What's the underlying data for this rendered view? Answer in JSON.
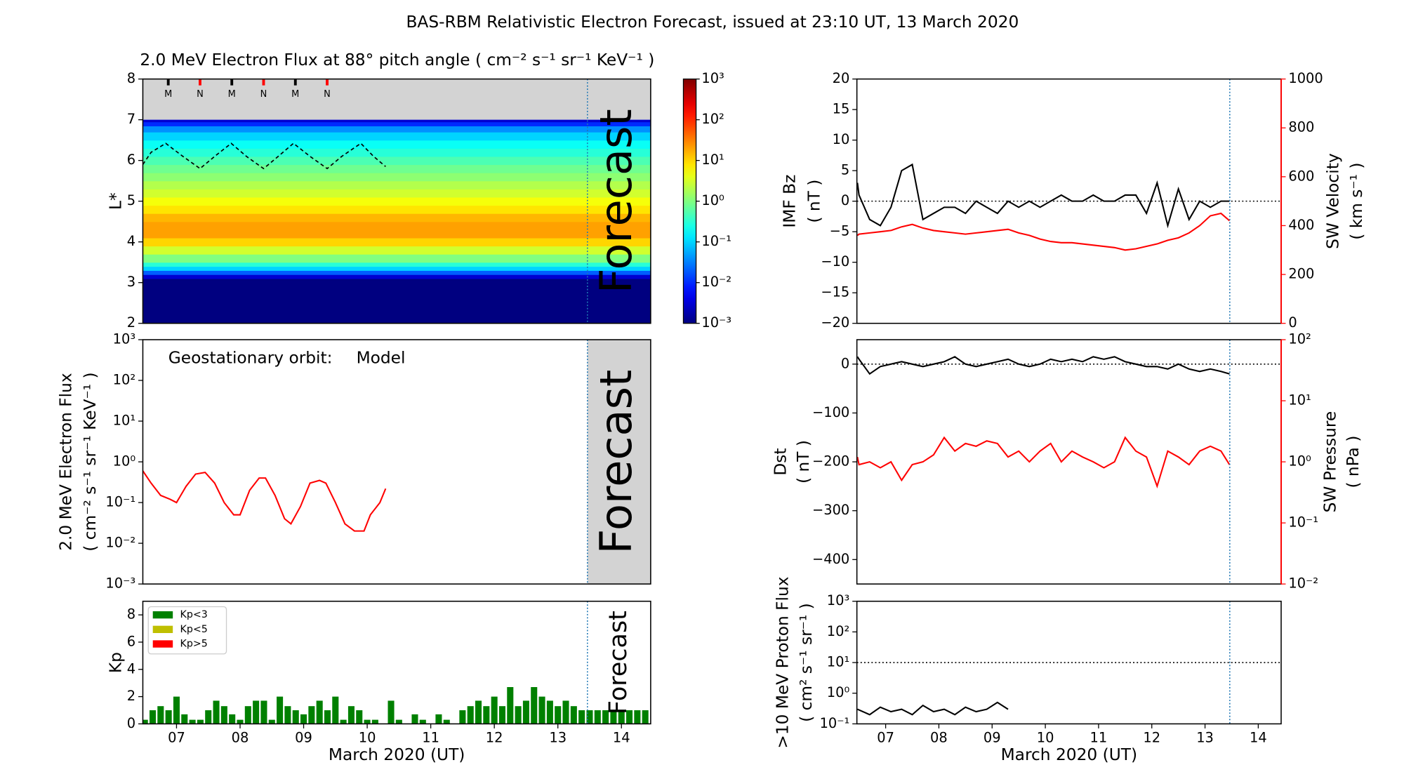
{
  "title": "BAS-RBM Relativistic Electron Forecast, issued at 23:10 UT, 13 March 2020",
  "chart_data": [
    {
      "type": "heatmap",
      "title": "2.0 MeV Electron Flux at 88° pitch angle ( cm⁻² s⁻¹ sr⁻¹ KeV⁻¹ )",
      "ylabel": "L*",
      "xlim": [
        6.97,
        14.96
      ],
      "ylim": [
        2,
        8
      ],
      "yticks": [
        2,
        3,
        4,
        5,
        6,
        7,
        8
      ],
      "L_edges": [
        2.0,
        3.1,
        3.2,
        3.3,
        3.4,
        3.5,
        3.7,
        3.9,
        4.1,
        4.3,
        4.5,
        4.7,
        4.9,
        5.1,
        5.3,
        5.5,
        5.7,
        5.9,
        6.1,
        6.3,
        6.5,
        6.7,
        6.85,
        6.95,
        7.0
      ],
      "values": [
        0.001,
        0.003,
        0.02,
        0.1,
        0.3,
        1,
        3,
        10,
        20,
        20,
        15,
        8,
        5,
        3,
        2,
        1.2,
        0.8,
        0.5,
        0.3,
        0.2,
        0.1,
        0.04,
        0.01,
        0.003
      ],
      "no_data_color": "#d3d3d3",
      "colorbar": {
        "lim": [
          0.001,
          1000
        ],
        "log": true,
        "ticks": [
          {
            "value": 0.001,
            "label": "10⁻³"
          },
          {
            "value": 0.01,
            "label": "10⁻²"
          },
          {
            "value": 0.1,
            "label": "10⁻¹"
          },
          {
            "value": 1,
            "label": "10⁰"
          },
          {
            "value": 10,
            "label": "10¹"
          },
          {
            "value": 100,
            "label": "10²"
          },
          {
            "value": 1000,
            "label": "10³"
          }
        ]
      },
      "line": {
        "color": "#000",
        "x": [
          6.97,
          7.1,
          7.33,
          7.6,
          7.87,
          8.1,
          8.36,
          8.6,
          8.87,
          9.1,
          9.34,
          9.6,
          9.87,
          10.1,
          10.4,
          10.6,
          10.79
        ],
        "values": [
          5.9,
          6.2,
          6.42,
          6.1,
          5.8,
          6.1,
          6.42,
          6.1,
          5.8,
          6.1,
          6.42,
          6.1,
          5.8,
          6.1,
          6.42,
          6.1,
          5.85
        ]
      },
      "markers": [
        {
          "x": 7.37,
          "label": "M",
          "color": "#000"
        },
        {
          "x": 7.87,
          "label": "N",
          "color": "#ff0000"
        },
        {
          "x": 8.37,
          "label": "M",
          "color": "#000"
        },
        {
          "x": 8.87,
          "label": "N",
          "color": "#ff0000"
        },
        {
          "x": 9.37,
          "label": "M",
          "color": "#000"
        },
        {
          "x": 9.87,
          "label": "N",
          "color": "#ff0000"
        }
      ],
      "forecast_x": 13.965,
      "forecast_label": "Forecast",
      "forecast_color": "rgba(255,255,255,0.35)"
    },
    {
      "type": "line",
      "ylabel": [
        "2.0 MeV Electron Flux",
        "( cm⁻² s⁻¹ sr⁻¹ KeV⁻¹ )"
      ],
      "ylog": true,
      "xlim": [
        6.97,
        14.96
      ],
      "ylim": [
        0.001,
        1000
      ],
      "yticks": [
        {
          "value": 0.001,
          "label": "10⁻³"
        },
        {
          "value": 0.01,
          "label": "10⁻²"
        },
        {
          "value": 0.1,
          "label": "10⁻¹"
        },
        {
          "value": 1,
          "label": "10⁰"
        },
        {
          "value": 10,
          "label": "10¹"
        },
        {
          "value": 100,
          "label": "10²"
        },
        {
          "value": 1000,
          "label": "10³"
        }
      ],
      "annotation": "Geostationary orbit:",
      "x": [
        6.97,
        7.1,
        7.25,
        7.4,
        7.5,
        7.65,
        7.8,
        7.95,
        8.1,
        8.25,
        8.4,
        8.5,
        8.65,
        8.8,
        8.9,
        9.05,
        9.2,
        9.3,
        9.45,
        9.6,
        9.75,
        9.85,
        10.0,
        10.15,
        10.3,
        10.45,
        10.55,
        10.7,
        10.79
      ],
      "series": [
        {
          "name": "Model",
          "color": "#ff0000",
          "values": [
            0.6,
            0.3,
            0.15,
            0.12,
            0.1,
            0.25,
            0.5,
            0.55,
            0.3,
            0.1,
            0.05,
            0.05,
            0.2,
            0.4,
            0.4,
            0.15,
            0.04,
            0.03,
            0.08,
            0.3,
            0.35,
            0.3,
            0.1,
            0.03,
            0.02,
            0.02,
            0.05,
            0.1,
            0.22
          ]
        }
      ],
      "forecast_x": 13.965,
      "forecast_label": "Forecast",
      "forecast_shade": "#d3d3d3",
      "forecast_color": "#bdbdbd"
    },
    {
      "type": "bar",
      "ylabel": "Kp",
      "xlabel": "March 2020 (UT)",
      "xlim": [
        6.97,
        14.96
      ],
      "ylim": [
        0,
        9
      ],
      "yticks": [
        0,
        2,
        4,
        6,
        8
      ],
      "xticks": [
        {
          "value": 7.5,
          "label": "07"
        },
        {
          "value": 8.5,
          "label": "08"
        },
        {
          "value": 9.5,
          "label": "09"
        },
        {
          "value": 10.5,
          "label": "10"
        },
        {
          "value": 11.5,
          "label": "11"
        },
        {
          "value": 12.5,
          "label": "12"
        },
        {
          "value": 13.5,
          "label": "13"
        },
        {
          "value": 14.5,
          "label": "14"
        }
      ],
      "x": [
        7,
        7.125,
        7.25,
        7.375,
        7.5,
        7.625,
        7.75,
        7.875,
        8,
        8.125,
        8.25,
        8.375,
        8.5,
        8.625,
        8.75,
        8.875,
        9,
        9.125,
        9.25,
        9.375,
        9.5,
        9.625,
        9.75,
        9.875,
        10,
        10.125,
        10.25,
        10.375,
        10.5,
        10.625,
        10.75,
        10.875,
        11,
        11.125,
        11.25,
        11.375,
        11.5,
        11.625,
        11.75,
        11.875,
        12,
        12.125,
        12.25,
        12.375,
        12.5,
        12.625,
        12.75,
        12.875,
        13,
        13.125,
        13.25,
        13.375,
        13.5,
        13.625,
        13.75,
        13.875,
        14,
        14.125,
        14.25,
        14.375,
        14.5,
        14.625,
        14.75,
        14.875
      ],
      "values": [
        0.3,
        1,
        1.3,
        1,
        2,
        0.7,
        0.3,
        0.3,
        1,
        1.7,
        1.3,
        0.7,
        0.3,
        1.3,
        1.7,
        1.7,
        0.3,
        2,
        1.3,
        1,
        0.7,
        1.3,
        1.7,
        1,
        2,
        0.3,
        1.3,
        1,
        0.3,
        0.3,
        0,
        1.7,
        0.3,
        0,
        0.7,
        0.3,
        0,
        0.7,
        0.3,
        0,
        1,
        1.3,
        1.7,
        1.3,
        2,
        1.3,
        2.7,
        1.3,
        1.7,
        2.7,
        2,
        1.7,
        1.3,
        1.7,
        1.3,
        1,
        1,
        1,
        1,
        1,
        1,
        1,
        1,
        1
      ],
      "color": "#008000",
      "legend": [
        {
          "name": "Kp<3",
          "color": "#008000"
        },
        {
          "name": "Kp<5",
          "color": "#bfbf00"
        },
        {
          "name": "Kp>5",
          "color": "#ff0000"
        }
      ],
      "forecast_x": 13.965,
      "forecast_label": "Forecast",
      "forecast_color": "#e6e6e6"
    },
    {
      "type": "line",
      "ylabel": [
        "IMF Bz",
        "( nT )"
      ],
      "y2label": [
        "SW Velocity",
        "( km s⁻¹ )"
      ],
      "y2color": "#ff0000",
      "xlim": [
        6.96,
        14.93
      ],
      "ylim": [
        -20,
        20
      ],
      "yticks": [
        {
          "value": -20,
          "label": "−20"
        },
        {
          "value": -15,
          "label": "−15"
        },
        {
          "value": -10,
          "label": "−10"
        },
        {
          "value": -5,
          "label": "−5"
        },
        0,
        5,
        10,
        15,
        20
      ],
      "y2lim": [
        0,
        1000
      ],
      "y2ticks": [
        0,
        200,
        400,
        600,
        800,
        1000
      ],
      "reference_line": 0,
      "x": [
        6.97,
        7.0,
        7.2,
        7.4,
        7.6,
        7.8,
        8.0,
        8.2,
        8.4,
        8.6,
        8.8,
        9.0,
        9.2,
        9.4,
        9.6,
        9.8,
        10.0,
        10.2,
        10.4,
        10.6,
        10.8,
        11.0,
        11.2,
        11.4,
        11.6,
        11.8,
        12.0,
        12.2,
        12.4,
        12.6,
        12.8,
        13.0,
        13.2,
        13.4,
        13.6,
        13.8,
        13.96
      ],
      "series": [
        {
          "color": "#000",
          "values": [
            3,
            1,
            -3,
            -4,
            -1,
            5,
            6,
            -3,
            -2,
            -1,
            -1,
            -2,
            0,
            -1,
            -2,
            0,
            -1,
            0,
            -1,
            0,
            1,
            0,
            0,
            1,
            0,
            0,
            1,
            1,
            -2,
            3,
            -4,
            2,
            -3,
            0,
            -1,
            0,
            0
          ]
        },
        {
          "color": "#ff0000",
          "axis": "y2",
          "values": [
            360,
            365,
            370,
            375,
            380,
            395,
            405,
            390,
            380,
            375,
            370,
            365,
            370,
            375,
            380,
            385,
            370,
            360,
            345,
            335,
            330,
            330,
            325,
            320,
            315,
            310,
            300,
            305,
            315,
            325,
            340,
            350,
            370,
            400,
            440,
            450,
            420
          ]
        }
      ],
      "forecast_x": 13.965
    },
    {
      "type": "line",
      "ylabel": [
        "Dst",
        "( nT )"
      ],
      "y2label": [
        "SW Pressure",
        "( nPa )"
      ],
      "y2color": "#ff0000",
      "y2log": true,
      "xlim": [
        6.96,
        14.93
      ],
      "ylim": [
        -450,
        50
      ],
      "yticks": [
        {
          "value": -400,
          "label": "−400"
        },
        {
          "value": -300,
          "label": "−300"
        },
        {
          "value": -200,
          "label": "−200"
        },
        {
          "value": -100,
          "label": "−100"
        },
        0
      ],
      "y2lim": [
        0.01,
        100
      ],
      "y2ticks": [
        {
          "value": 0.01,
          "label": "10⁻²"
        },
        {
          "value": 0.1,
          "label": "10⁻¹"
        },
        {
          "value": 1,
          "label": "10⁰"
        },
        {
          "value": 10,
          "label": "10¹"
        },
        {
          "value": 100,
          "label": "10²"
        }
      ],
      "reference_line": 0,
      "x": [
        6.97,
        7.0,
        7.2,
        7.4,
        7.6,
        7.8,
        8.0,
        8.2,
        8.4,
        8.6,
        8.8,
        9.0,
        9.2,
        9.4,
        9.6,
        9.8,
        10.0,
        10.2,
        10.4,
        10.6,
        10.8,
        11.0,
        11.2,
        11.4,
        11.6,
        11.8,
        12.0,
        12.2,
        12.4,
        12.6,
        12.8,
        13.0,
        13.2,
        13.4,
        13.6,
        13.8,
        13.96
      ],
      "series": [
        {
          "color": "#000",
          "values": [
            15,
            10,
            -20,
            -5,
            0,
            5,
            0,
            -5,
            0,
            5,
            15,
            0,
            -5,
            0,
            5,
            10,
            0,
            -5,
            0,
            10,
            5,
            10,
            5,
            15,
            10,
            15,
            5,
            0,
            -5,
            -5,
            -10,
            0,
            -10,
            -15,
            -10,
            -15,
            -20
          ]
        },
        {
          "color": "#ff0000",
          "axis": "y2",
          "values": [
            1.2,
            0.9,
            1.0,
            0.8,
            1.0,
            0.5,
            0.9,
            1.0,
            1.3,
            2.5,
            1.5,
            2.0,
            1.8,
            2.2,
            2.0,
            1.2,
            1.5,
            1.0,
            1.5,
            2.0,
            1.0,
            1.5,
            1.2,
            1.0,
            0.8,
            1.0,
            2.5,
            1.5,
            1.2,
            0.4,
            1.5,
            1.2,
            0.9,
            1.5,
            1.8,
            1.5,
            0.9
          ]
        }
      ],
      "forecast_x": 13.965
    },
    {
      "type": "line",
      "ylabel": [
        ">10 MeV Proton Flux",
        "( cm² s⁻¹ sr⁻¹ )"
      ],
      "xlabel": "March 2020 (UT)",
      "ylog": true,
      "xlim": [
        6.96,
        14.93
      ],
      "ylim": [
        0.1,
        1000
      ],
      "yticks": [
        {
          "value": 0.1,
          "label": "10⁻¹"
        },
        {
          "value": 1,
          "label": "10⁰"
        },
        {
          "value": 10,
          "label": "10¹"
        },
        {
          "value": 100,
          "label": "10²"
        },
        {
          "value": 1000,
          "label": "10³"
        }
      ],
      "xticks": [
        {
          "value": 7.5,
          "label": "07"
        },
        {
          "value": 8.5,
          "label": "08"
        },
        {
          "value": 9.5,
          "label": "09"
        },
        {
          "value": 10.5,
          "label": "10"
        },
        {
          "value": 11.5,
          "label": "11"
        },
        {
          "value": 12.5,
          "label": "12"
        },
        {
          "value": 13.5,
          "label": "13"
        },
        {
          "value": 14.5,
          "label": "14"
        }
      ],
      "reference_line": 10,
      "x": [
        6.97,
        7.2,
        7.4,
        7.6,
        7.8,
        8.0,
        8.2,
        8.4,
        8.6,
        8.8,
        9.0,
        9.2,
        9.4,
        9.6,
        9.8
      ],
      "series": [
        {
          "color": "#000",
          "values": [
            0.3,
            0.2,
            0.35,
            0.25,
            0.3,
            0.2,
            0.4,
            0.25,
            0.3,
            0.2,
            0.35,
            0.25,
            0.3,
            0.5,
            0.3
          ]
        }
      ],
      "forecast_x": 13.965
    }
  ]
}
